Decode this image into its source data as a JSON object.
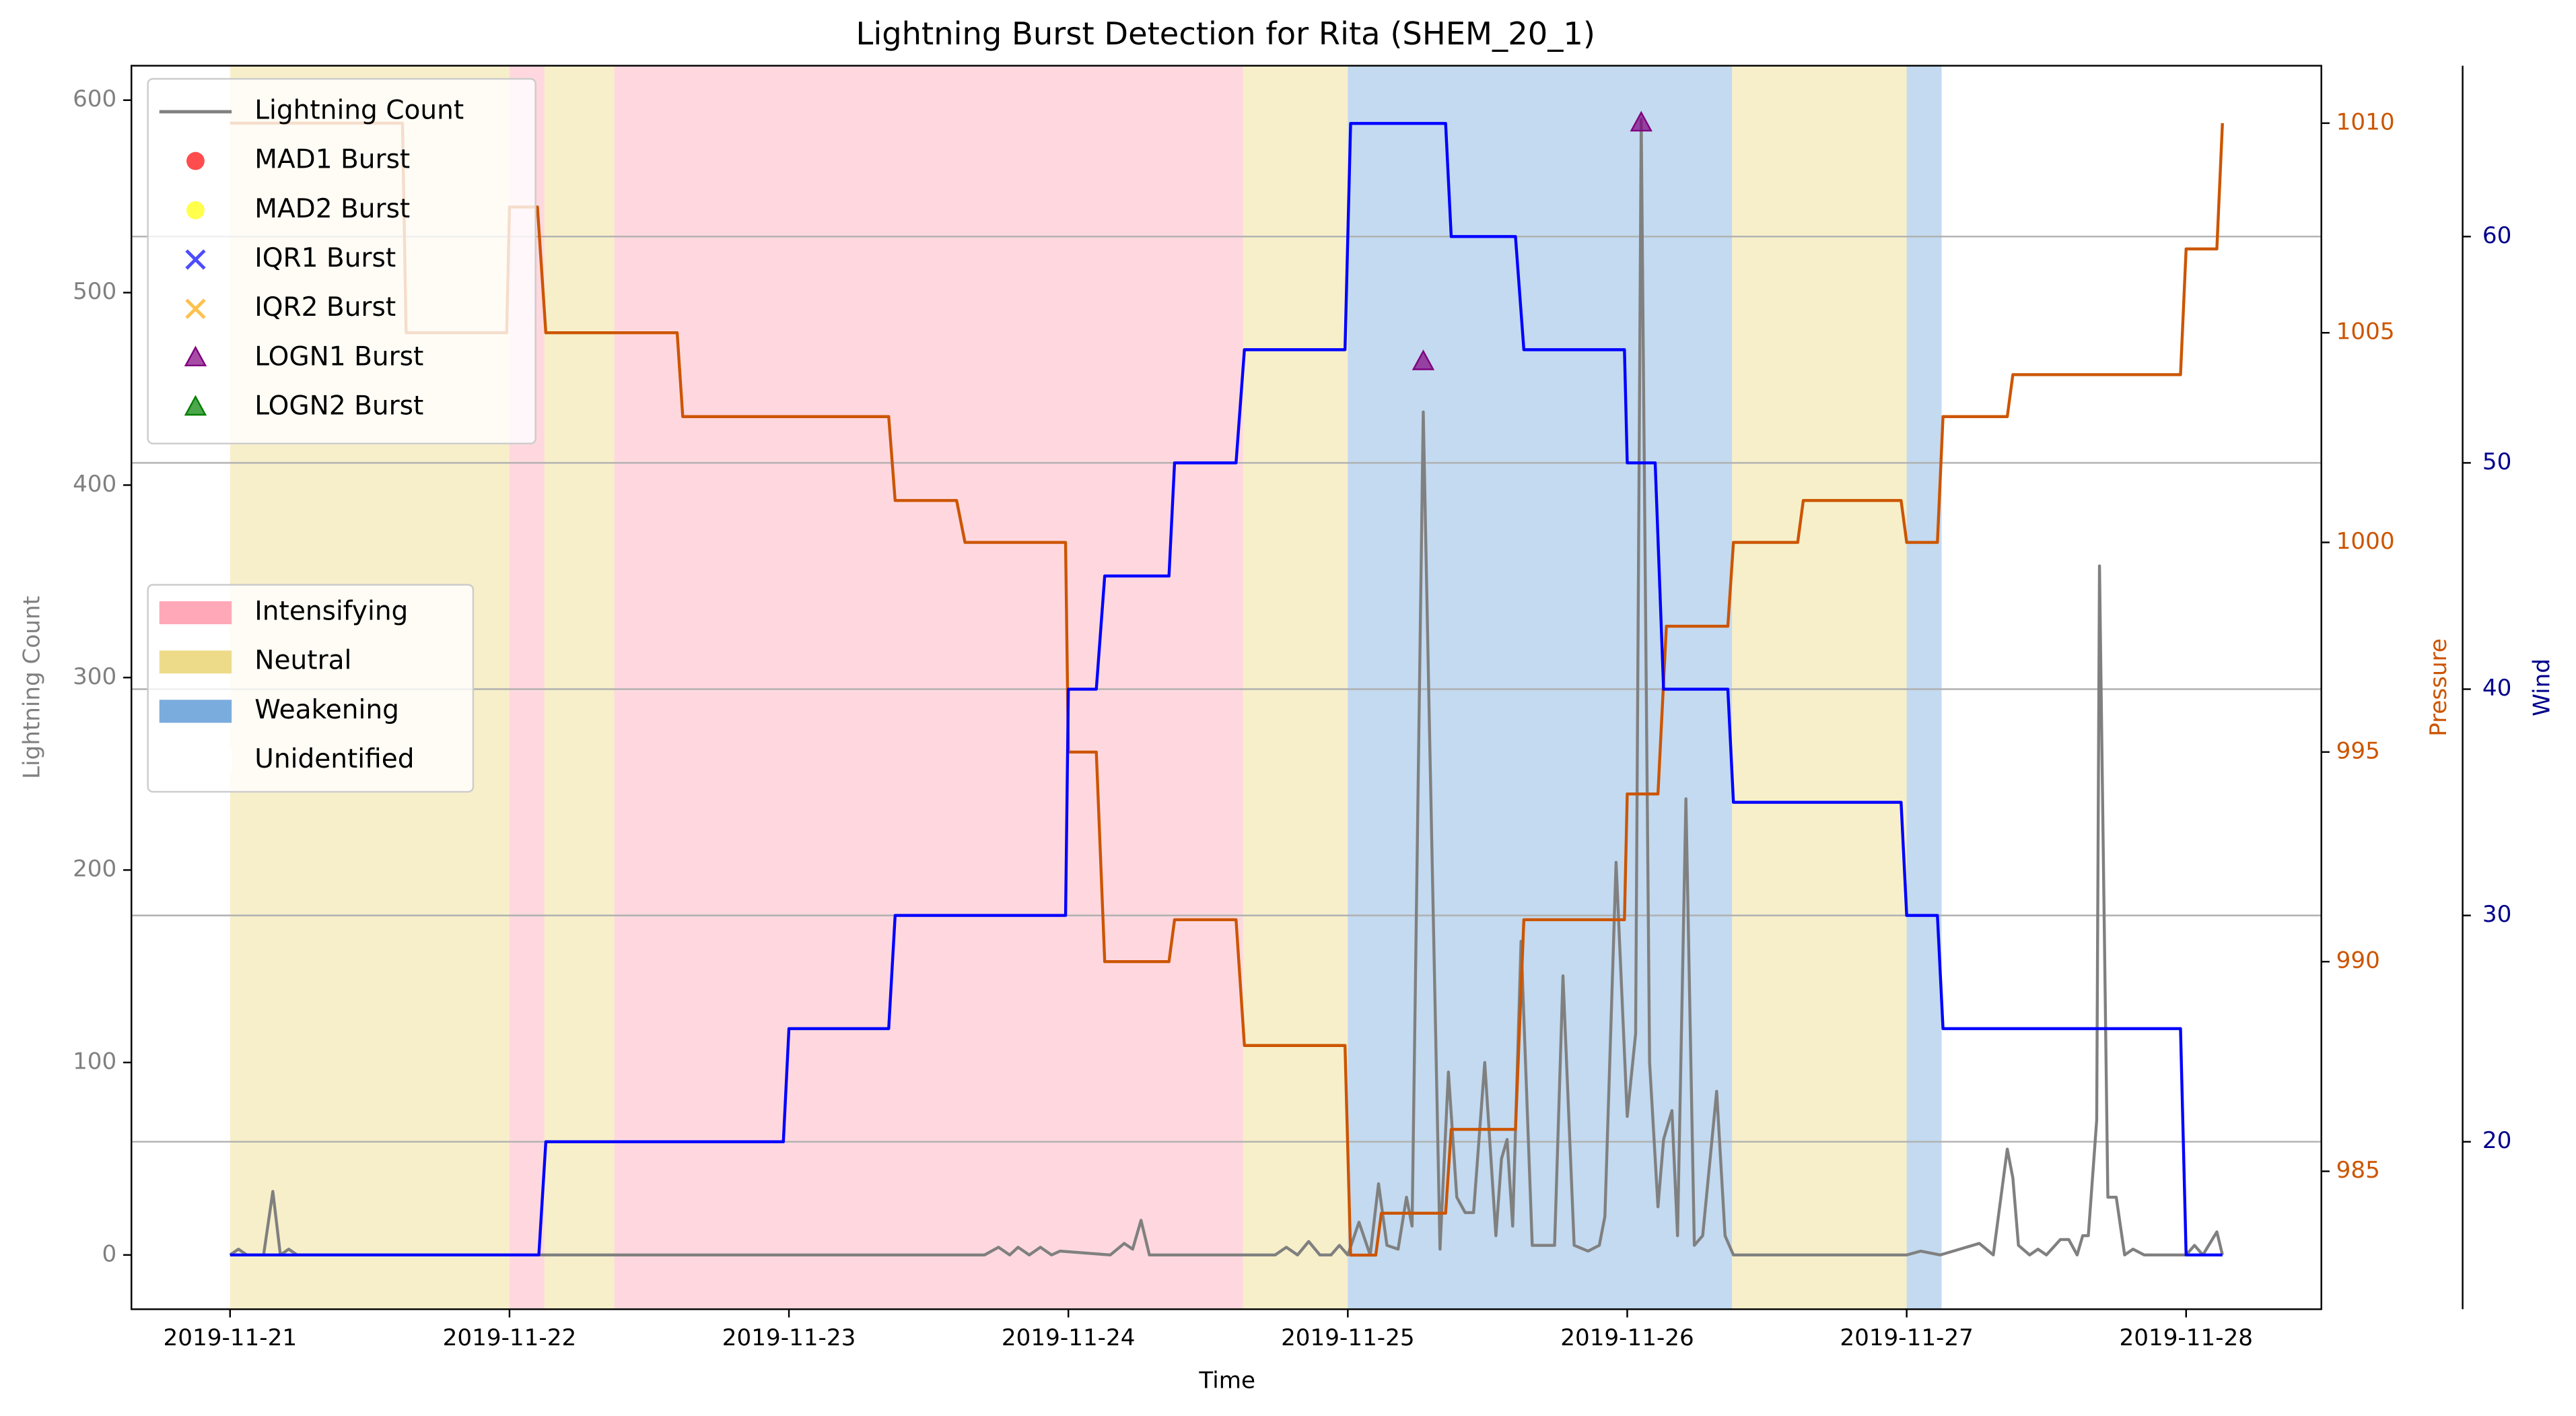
{
  "chart_data": {
    "type": "line",
    "title": "Lightning Burst Detection for Rita (SHEM_20_1)",
    "xlabel": "Time",
    "ylabel": "Lightning Count",
    "y2label": "Pressure",
    "y3label": "Wind",
    "axis_colors": {
      "y": "#808080",
      "y2": "#cc5500",
      "y3": "#00008b"
    },
    "xlim": [
      -0.353,
      7.484
    ],
    "xticks": [
      {
        "value": 0,
        "label": "2019-11-21"
      },
      {
        "value": 1,
        "label": "2019-11-22"
      },
      {
        "value": 2,
        "label": "2019-11-23"
      },
      {
        "value": 3,
        "label": "2019-11-24"
      },
      {
        "value": 4,
        "label": "2019-11-25"
      },
      {
        "value": 5,
        "label": "2019-11-26"
      },
      {
        "value": 6,
        "label": "2019-11-27"
      },
      {
        "value": 7,
        "label": "2019-11-28"
      }
    ],
    "ylim": [
      -28.2,
      617.9
    ],
    "yticks": [
      0,
      100,
      200,
      300,
      400,
      500,
      600
    ],
    "y2lim": [
      981.71,
      1011.37
    ],
    "y2ticks": [
      985,
      990,
      995,
      1000,
      1005,
      1010
    ],
    "y3lim": [
      12.6,
      67.55
    ],
    "y3ticks": [
      20,
      30,
      40,
      50,
      60
    ],
    "grid": "y3",
    "legend": "upper left",
    "phase_legend": "center left",
    "series": [
      {
        "name": "Lightning Count",
        "type": "line",
        "color": "#808080",
        "x": [
          0,
          0.03,
          0.06,
          0.12,
          0.153,
          0.18,
          0.21,
          0.24,
          2.7,
          2.75,
          2.79,
          2.82,
          2.86,
          2.9,
          2.94,
          2.97,
          3.15,
          3.2,
          3.23,
          3.26,
          3.29,
          3.74,
          3.78,
          3.82,
          3.86,
          3.9,
          3.94,
          3.97,
          4.0,
          4.04,
          4.08,
          4.11,
          4.14,
          4.18,
          4.21,
          4.23,
          4.27,
          4.29,
          4.33,
          4.36,
          4.39,
          4.42,
          4.45,
          4.49,
          4.53,
          4.55,
          4.57,
          4.59,
          4.62,
          4.66,
          4.7,
          4.74,
          4.77,
          4.81,
          4.86,
          4.9,
          4.92,
          4.96,
          5.0,
          5.03,
          5.05,
          5.08,
          5.11,
          5.13,
          5.16,
          5.18,
          5.21,
          5.24,
          5.27,
          5.32,
          5.35,
          5.38,
          6.0,
          6.05,
          6.12,
          6.26,
          6.31,
          6.36,
          6.38,
          6.4,
          6.44,
          6.47,
          6.5,
          6.55,
          6.58,
          6.61,
          6.63,
          6.65,
          6.68,
          6.69,
          6.72,
          6.75,
          6.78,
          6.81,
          6.85,
          7.0,
          7.03,
          7.06,
          7.11,
          7.13
        ],
        "values": [
          0,
          3,
          0,
          0,
          33,
          0,
          3,
          0,
          0,
          4,
          0,
          4,
          0,
          4,
          0,
          2,
          0,
          6,
          3,
          18,
          0,
          0,
          4,
          0,
          7,
          0,
          0,
          5,
          0,
          17,
          0,
          37,
          5,
          3,
          30,
          15,
          438,
          290,
          3,
          95,
          30,
          22,
          22,
          100,
          10,
          50,
          60,
          15,
          163,
          5,
          5,
          5,
          145,
          5,
          2,
          5,
          20,
          204,
          72,
          115,
          590,
          100,
          25,
          60,
          75,
          10,
          237,
          5,
          10,
          85,
          10,
          0,
          0,
          2,
          0,
          6,
          0,
          55,
          40,
          5,
          0,
          3,
          0,
          8,
          8,
          0,
          10,
          10,
          70,
          358,
          30,
          30,
          0,
          3,
          0,
          0,
          5,
          0,
          12,
          0
        ]
      },
      {
        "type": "line",
        "axis": "y2",
        "color": "#cc5500",
        "x": [
          0,
          0.617,
          0.63,
          0.99,
          1.0,
          1.1,
          1.13,
          1.6,
          1.62,
          2.357,
          2.38,
          2.6,
          2.63,
          2.99,
          3.0,
          3.1,
          3.13,
          3.36,
          3.38,
          3.6,
          3.63,
          3.99,
          4.01,
          4.1,
          4.12,
          4.35,
          4.37,
          4.6,
          4.63,
          4.99,
          5.0,
          5.11,
          5.14,
          5.36,
          5.38,
          5.61,
          5.63,
          5.98,
          6.0,
          6.11,
          6.13,
          6.36,
          6.38,
          6.98,
          7.0,
          7.11,
          7.13
        ],
        "values": [
          1010,
          1010,
          1005,
          1005,
          1008,
          1008,
          1005,
          1005,
          1003,
          1003,
          1001,
          1001,
          1000,
          1000,
          995,
          995,
          990,
          990,
          991,
          991,
          988,
          988,
          983,
          983,
          984,
          984,
          986,
          986,
          991,
          991,
          994,
          994,
          998,
          998,
          1000,
          1000,
          1001,
          1001,
          1000,
          1000,
          1003,
          1003,
          1004,
          1004,
          1007,
          1007,
          1010
        ]
      },
      {
        "type": "line",
        "axis": "y3",
        "color": "#0000ff",
        "x": [
          0,
          1.105,
          1.13,
          1.98,
          2.0,
          2.357,
          2.38,
          2.99,
          3.0,
          3.1,
          3.13,
          3.36,
          3.38,
          3.6,
          3.63,
          3.99,
          4.01,
          4.35,
          4.37,
          4.6,
          4.63,
          4.99,
          5.0,
          5.1,
          5.13,
          5.36,
          5.38,
          5.98,
          6.0,
          6.11,
          6.13,
          6.98,
          7.0,
          7.13
        ],
        "values": [
          15,
          15,
          20,
          20,
          25,
          25,
          30,
          30,
          40,
          40,
          45,
          45,
          50,
          50,
          55,
          55,
          65,
          65,
          60,
          60,
          55,
          55,
          50,
          50,
          40,
          40,
          35,
          35,
          30,
          30,
          25,
          25,
          15,
          15
        ]
      },
      {
        "name": "MAD1 Burst",
        "type": "scatter",
        "marker": "o",
        "color": "#ff0000",
        "x": [],
        "values": []
      },
      {
        "name": "MAD2 Burst",
        "type": "scatter",
        "marker": "o",
        "color": "#ffff00",
        "x": [],
        "values": []
      },
      {
        "name": "IQR1 Burst",
        "type": "scatter",
        "marker": "x",
        "color": "#0000ff",
        "x": [],
        "values": []
      },
      {
        "name": "IQR2 Burst",
        "type": "scatter",
        "marker": "x",
        "color": "#ffa500",
        "x": [],
        "values": []
      },
      {
        "name": "LOGN1 Burst",
        "type": "scatter",
        "marker": "^",
        "color": "#800080",
        "x": [
          4.27,
          5.05
        ],
        "values": [
          464,
          588
        ]
      },
      {
        "name": "LOGN2 Burst",
        "type": "scatter",
        "marker": "^",
        "color": "#008000",
        "x": [],
        "values": []
      }
    ],
    "phases": [
      {
        "name": "Intensifying",
        "color": "#ffa8b8"
      },
      {
        "name": "Neutral",
        "color": "#eedb8a"
      },
      {
        "name": "Weakening",
        "color": "#7aacde"
      },
      {
        "name": "Unidentified",
        "color": "#ffffff"
      }
    ],
    "spans": [
      {
        "phase": 1,
        "start": 0,
        "end": 1.0
      },
      {
        "phase": 0,
        "start": 1.0,
        "end": 1.125
      },
      {
        "phase": 1,
        "start": 1.125,
        "end": 1.375
      },
      {
        "phase": 0,
        "start": 1.375,
        "end": 3.625
      },
      {
        "phase": 1,
        "start": 3.625,
        "end": 4.0
      },
      {
        "phase": 2,
        "start": 4.0,
        "end": 5.375
      },
      {
        "phase": 1,
        "start": 5.375,
        "end": 6.0
      },
      {
        "phase": 2,
        "start": 6.0,
        "end": 6.125
      },
      {
        "phase": 3,
        "start": 6.125,
        "end": 7.125
      }
    ]
  }
}
